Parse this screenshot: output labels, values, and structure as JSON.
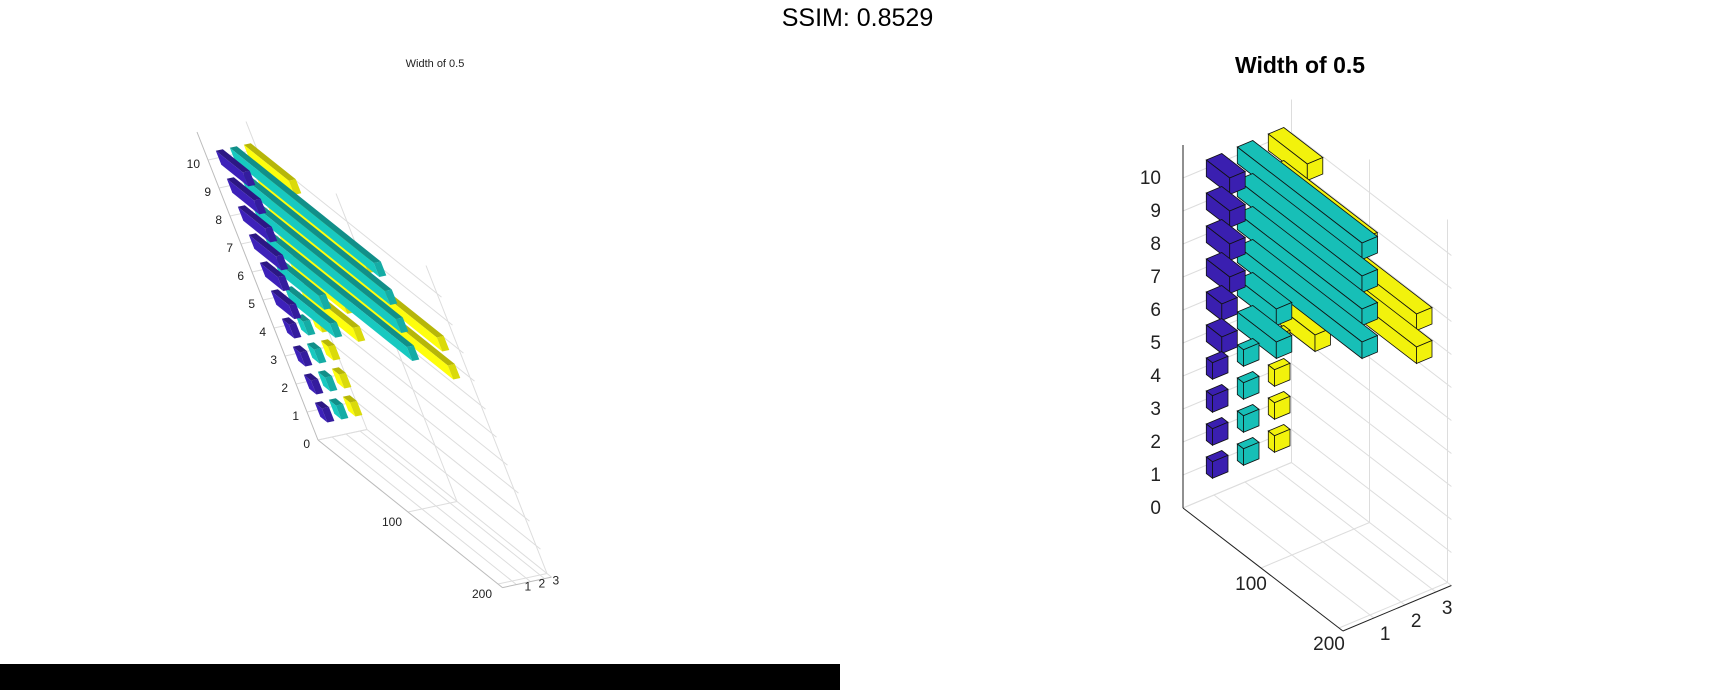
{
  "header": {
    "ssim_label": "SSIM: 0.8529"
  },
  "colors": {
    "series1": "#3a1fb0",
    "series2": "#17bfb7",
    "series3": "#f2f20c",
    "grid": "#dddddd",
    "axis": "#333333"
  },
  "chart_data": [
    {
      "type": "bar3h",
      "title": "Width of 0.5",
      "y_ticks": [
        "0",
        "1",
        "2",
        "3",
        "4",
        "5",
        "6",
        "7",
        "8",
        "9",
        "10"
      ],
      "x_ticks": [
        "100",
        "200"
      ],
      "z_ticks": [
        "1",
        "2",
        "3"
      ],
      "categories": [
        1,
        2,
        3,
        4,
        5,
        6,
        7,
        8,
        9,
        10
      ],
      "series": [
        {
          "values": [
            8,
            8,
            8,
            8,
            20,
            20,
            30,
            30,
            30,
            30
          ]
        },
        {
          "values": [
            8,
            8,
            8,
            8,
            50,
            50,
            160,
            160,
            160,
            160
          ]
        },
        {
          "values": [
            8,
            8,
            8,
            8,
            60,
            60,
            190,
            190,
            120,
            50
          ]
        }
      ]
    },
    {
      "type": "bar3h",
      "title": "Width of 0.5",
      "y_ticks": [
        "0",
        "1",
        "2",
        "3",
        "4",
        "5",
        "6",
        "7",
        "8",
        "9",
        "10"
      ],
      "x_ticks": [
        "100",
        "200"
      ],
      "z_ticks": [
        "1",
        "2",
        "3"
      ],
      "categories": [
        1,
        2,
        3,
        4,
        5,
        6,
        7,
        8,
        9,
        10
      ],
      "series": [
        {
          "values": [
            8,
            8,
            8,
            8,
            20,
            20,
            30,
            30,
            30,
            30
          ]
        },
        {
          "values": [
            8,
            8,
            8,
            8,
            50,
            50,
            160,
            160,
            160,
            160
          ]
        },
        {
          "values": [
            8,
            8,
            8,
            8,
            60,
            60,
            190,
            190,
            120,
            50
          ]
        }
      ]
    }
  ]
}
